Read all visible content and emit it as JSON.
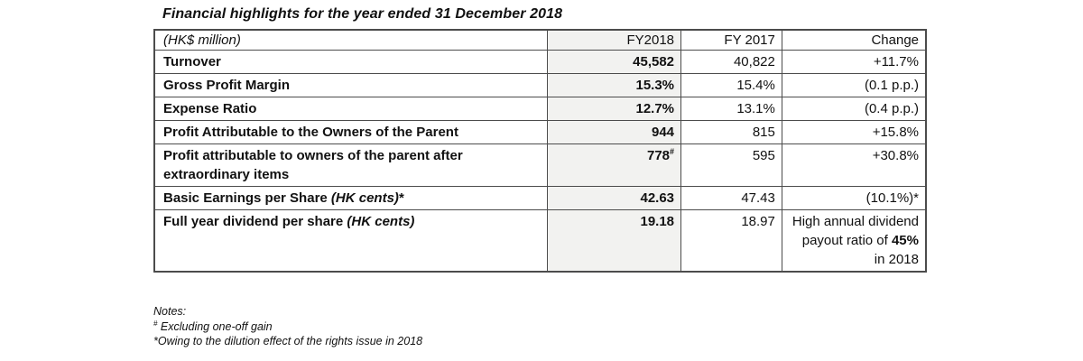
{
  "title": "Financial highlights for the year ended 31 December 2018",
  "table": {
    "header": {
      "unit_label": "(HK$ million)",
      "fy2018": "FY2018",
      "fy2017": "FY 2017",
      "change": "Change"
    },
    "rows": [
      {
        "label": [
          {
            "t": "Turnover"
          }
        ],
        "fy2018": "45,582",
        "fy2018_sup": "",
        "fy2017": "40,822",
        "change": [
          {
            "t": "+11.7%"
          }
        ]
      },
      {
        "label": [
          {
            "t": "Gross Profit Margin"
          }
        ],
        "fy2018": "15.3%",
        "fy2018_sup": "",
        "fy2017": "15.4%",
        "change": [
          {
            "t": "(0.1 p.p.)"
          }
        ]
      },
      {
        "label": [
          {
            "t": "Expense Ratio"
          }
        ],
        "fy2018": "12.7%",
        "fy2018_sup": "",
        "fy2017": "13.1%",
        "change": [
          {
            "t": "(0.4 p.p.)"
          }
        ]
      },
      {
        "label": [
          {
            "t": "Profit Attributable to the Owners of the Parent"
          }
        ],
        "fy2018": "944",
        "fy2018_sup": "",
        "fy2017": "815",
        "change": [
          {
            "t": "+15.8%"
          }
        ]
      },
      {
        "label": [
          {
            "t": "Profit attributable to owners of the parent after extraordinary items"
          }
        ],
        "fy2018": "778",
        "fy2018_sup": "#",
        "fy2017": "595",
        "change": [
          {
            "t": "+30.8%"
          }
        ]
      },
      {
        "label": [
          {
            "t": "Basic Earnings per Share "
          },
          {
            "t": "(HK cents)",
            "italic": true
          },
          {
            "t": "*"
          }
        ],
        "fy2018": "42.63",
        "fy2018_sup": "",
        "fy2017": "47.43",
        "change": [
          {
            "t": "(10.1%)*"
          }
        ]
      },
      {
        "label": [
          {
            "t": "Full year dividend per share "
          },
          {
            "t": "(HK cents)",
            "italic": true
          }
        ],
        "fy2018": "19.18",
        "fy2018_sup": "",
        "fy2017": "18.97",
        "change": [
          {
            "t": "High annual dividend payout ratio of "
          },
          {
            "t": "45%",
            "bold": true
          },
          {
            "t": " in 2018"
          }
        ]
      }
    ]
  },
  "notes": {
    "heading": "Notes:",
    "items": [
      {
        "marker": "#",
        "marker_sup": true,
        "text": " Excluding one-off gain"
      },
      {
        "marker": "*",
        "marker_sup": false,
        "text": "Owing to the dilution effect of the rights issue in 2018"
      }
    ]
  },
  "colors": {
    "fy2018_column_bg": "#f2f2f0",
    "border": "#4c4c4c",
    "text": "#111111"
  }
}
